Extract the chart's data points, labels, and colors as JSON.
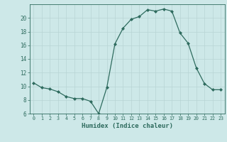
{
  "x": [
    0,
    1,
    2,
    3,
    4,
    5,
    6,
    7,
    8,
    9,
    10,
    11,
    12,
    13,
    14,
    15,
    16,
    17,
    18,
    19,
    20,
    21,
    22,
    23
  ],
  "y": [
    10.5,
    9.8,
    9.6,
    9.2,
    8.5,
    8.2,
    8.2,
    7.8,
    6.0,
    9.8,
    16.2,
    18.5,
    19.8,
    20.2,
    21.2,
    21.0,
    21.3,
    21.0,
    17.8,
    16.3,
    12.7,
    10.4,
    9.5,
    9.5
  ],
  "xlabel": "Humidex (Indice chaleur)",
  "ylim": [
    6,
    21
  ],
  "xlim": [
    -0.5,
    23.5
  ],
  "yticks": [
    6,
    8,
    10,
    12,
    14,
    16,
    18,
    20
  ],
  "xticks": [
    0,
    1,
    2,
    3,
    4,
    5,
    6,
    7,
    8,
    9,
    10,
    11,
    12,
    13,
    14,
    15,
    16,
    17,
    18,
    19,
    20,
    21,
    22,
    23
  ],
  "line_color": "#2e6b5e",
  "marker": "D",
  "marker_size": 2.0,
  "bg_color": "#cde8e8",
  "grid_color": "#b8d4d4",
  "axes_bg": "#cde8e8",
  "tick_label_color": "#2e6b5e",
  "xlabel_color": "#2e6b5e"
}
